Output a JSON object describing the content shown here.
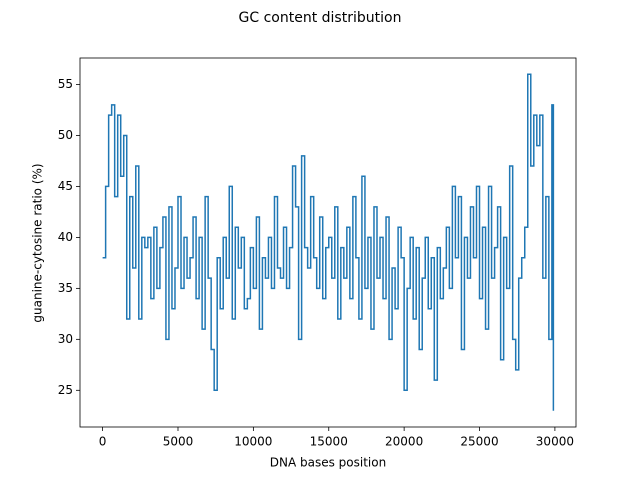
{
  "chart_data": {
    "type": "line",
    "step": "post",
    "title": "GC content distribution",
    "xlabel": "DNA bases position",
    "ylabel": "guanine-cytosine ratio (%)",
    "xlim": [
      -1500,
      31400
    ],
    "ylim": [
      21.4,
      57.6
    ],
    "xticks": [
      0,
      5000,
      10000,
      15000,
      20000,
      25000,
      30000
    ],
    "yticks": [
      25,
      30,
      35,
      40,
      45,
      50,
      55
    ],
    "grid": false,
    "series": [
      {
        "color": "#1f77b4",
        "x": [
          0,
          200,
          400,
          600,
          800,
          1000,
          1200,
          1400,
          1600,
          1800,
          2000,
          2200,
          2400,
          2600,
          2800,
          3000,
          3200,
          3400,
          3600,
          3800,
          4000,
          4200,
          4400,
          4600,
          4800,
          5000,
          5200,
          5400,
          5600,
          5800,
          6000,
          6200,
          6400,
          6600,
          6800,
          7000,
          7200,
          7400,
          7600,
          7800,
          8000,
          8200,
          8400,
          8600,
          8800,
          9000,
          9200,
          9400,
          9600,
          9800,
          10000,
          10200,
          10400,
          10600,
          10800,
          11000,
          11200,
          11400,
          11600,
          11800,
          12000,
          12200,
          12400,
          12600,
          12800,
          13000,
          13200,
          13400,
          13600,
          13800,
          14000,
          14200,
          14400,
          14600,
          14800,
          15000,
          15200,
          15400,
          15600,
          15800,
          16000,
          16200,
          16400,
          16600,
          16800,
          17000,
          17200,
          17400,
          17600,
          17800,
          18000,
          18200,
          18400,
          18600,
          18800,
          19000,
          19200,
          19400,
          19600,
          19800,
          20000,
          20200,
          20400,
          20600,
          20800,
          21000,
          21200,
          21400,
          21600,
          21800,
          22000,
          22200,
          22400,
          22600,
          22800,
          23000,
          23200,
          23400,
          23600,
          23800,
          24000,
          24200,
          24400,
          24600,
          24800,
          25000,
          25200,
          25400,
          25600,
          25800,
          26000,
          26200,
          26400,
          26600,
          26800,
          27000,
          27200,
          27400,
          27600,
          27800,
          28000,
          28200,
          28400,
          28600,
          28800,
          29000,
          29200,
          29400,
          29600,
          29800,
          29900
        ],
        "values": [
          38,
          45,
          52,
          53,
          44,
          52,
          46,
          50,
          32,
          44,
          37,
          47,
          32,
          40,
          39,
          40,
          34,
          41,
          35,
          39,
          42,
          30,
          43,
          33,
          37,
          44,
          35,
          40,
          36,
          38,
          42,
          34,
          40,
          31,
          44,
          36,
          29,
          25,
          38,
          33,
          40,
          36,
          45,
          32,
          41,
          37,
          40,
          33,
          34,
          39,
          35,
          42,
          31,
          38,
          36,
          40,
          35,
          44,
          37,
          36,
          41,
          35,
          39,
          47,
          43,
          30,
          48,
          39,
          37,
          44,
          38,
          35,
          42,
          34,
          39,
          40,
          36,
          43,
          32,
          39,
          36,
          41,
          34,
          44,
          38,
          32,
          46,
          35,
          40,
          31,
          43,
          36,
          40,
          34,
          42,
          30,
          37,
          33,
          41,
          38,
          25,
          35,
          40,
          32,
          39,
          29,
          36,
          40,
          33,
          38,
          26,
          39,
          34,
          37,
          41,
          35,
          45,
          38,
          44,
          29,
          40,
          36,
          43,
          38,
          45,
          34,
          41,
          31,
          45,
          36,
          39,
          43,
          28,
          40,
          35,
          47,
          30,
          27,
          36,
          38,
          41,
          56,
          47,
          52,
          49,
          52,
          36,
          44,
          30,
          53,
          23
        ]
      }
    ]
  }
}
